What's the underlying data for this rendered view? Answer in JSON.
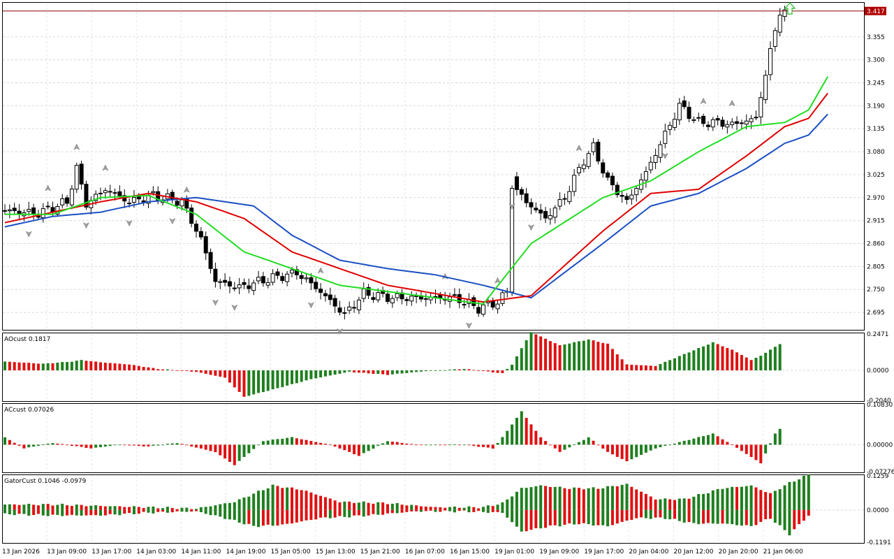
{
  "price_panel": {
    "current_price_label": "3.417",
    "price_ticks": [
      "3.355",
      "3.300",
      "3.245",
      "3.190",
      "3.135",
      "3.080",
      "3.025",
      "2.970",
      "2.915",
      "2.860",
      "2.805",
      "2.750",
      "2.695"
    ],
    "ylim": [
      2.655,
      3.435
    ],
    "bullish_arrow_icon": "up-arrow-icon",
    "colors": {
      "jaw": "#1a4fc4",
      "teeth": "#e00000",
      "lips": "#22dd22",
      "price_line": "#8b0000",
      "label_bg": "#b00000",
      "fractal": "#a0a0a0"
    }
  },
  "ao_panel": {
    "title": "AOcust 0.1817",
    "ticks": [
      "0.2471",
      "0.0000",
      "-0.2040"
    ],
    "ylim": [
      -0.204,
      0.2471
    ]
  },
  "ac_panel": {
    "title": "ACcust 0.07026",
    "ticks": [
      "0.10830",
      "0.00000",
      "-0.07276"
    ],
    "ylim": [
      -0.07276,
      0.1083
    ]
  },
  "gator_panel": {
    "title": "GatorCust 0.1046 -0.0979",
    "ticks": [
      "0.1259",
      "0.0000",
      "-0.1191"
    ],
    "ylim": [
      -0.1191,
      0.1259
    ]
  },
  "time_axis": {
    "labels": [
      "13 Jan 2026",
      "13 Jan 09:00",
      "13 Jan 17:00",
      "14 Jan 03:00",
      "14 Jan 11:00",
      "14 Jan 19:00",
      "15 Jan 05:00",
      "15 Jan 13:00",
      "15 Jan 21:00",
      "16 Jan 07:00",
      "16 Jan 15:00",
      "19 Jan 01:00",
      "19 Jan 09:00",
      "19 Jan 17:00",
      "20 Jan 04:00",
      "20 Jan 12:00",
      "20 Jan 20:00",
      "21 Jan 06:00"
    ]
  },
  "chart_data": [
    {
      "type": "candlestick",
      "title": "",
      "current_price": 3.417,
      "ylim": [
        2.655,
        3.435
      ],
      "ohlc_anchors_close": [
        [
          0,
          2.94
        ],
        [
          8,
          2.932
        ],
        [
          14,
          2.96
        ],
        [
          16,
          3.04
        ],
        [
          18,
          2.955
        ],
        [
          22,
          2.99
        ],
        [
          27,
          2.96
        ],
        [
          32,
          2.975
        ],
        [
          38,
          2.96
        ],
        [
          42,
          2.87
        ],
        [
          45,
          2.77
        ],
        [
          50,
          2.755
        ],
        [
          56,
          2.775
        ],
        [
          62,
          2.79
        ],
        [
          66,
          2.755
        ],
        [
          72,
          2.69
        ],
        [
          76,
          2.74
        ],
        [
          82,
          2.73
        ],
        [
          88,
          2.73
        ],
        [
          95,
          2.73
        ],
        [
          100,
          2.705
        ],
        [
          104,
          2.72
        ],
        [
          106,
          2.745
        ],
        [
          107,
          3.0
        ],
        [
          110,
          2.96
        ],
        [
          114,
          2.92
        ],
        [
          118,
          2.97
        ],
        [
          122,
          3.06
        ],
        [
          124,
          3.09
        ],
        [
          127,
          3.01
        ],
        [
          131,
          2.96
        ],
        [
          135,
          3.03
        ],
        [
          142,
          3.19
        ],
        [
          146,
          3.15
        ],
        [
          150,
          3.15
        ],
        [
          153,
          3.145
        ],
        [
          158,
          3.16
        ],
        [
          161,
          3.32
        ],
        [
          163,
          3.417
        ]
      ],
      "alligator": {
        "jaw": [
          [
            0,
            2.9
          ],
          [
            10,
            2.925
          ],
          [
            20,
            2.935
          ],
          [
            30,
            2.96
          ],
          [
            40,
            2.97
          ],
          [
            52,
            2.95
          ],
          [
            60,
            2.88
          ],
          [
            70,
            2.82
          ],
          [
            80,
            2.8
          ],
          [
            90,
            2.785
          ],
          [
            100,
            2.76
          ],
          [
            110,
            2.73
          ],
          [
            125,
            2.86
          ],
          [
            135,
            2.95
          ],
          [
            145,
            2.98
          ],
          [
            155,
            3.04
          ],
          [
            163,
            3.1
          ],
          [
            168,
            3.12
          ],
          [
            172,
            3.17
          ]
        ],
        "teeth": [
          [
            0,
            2.91
          ],
          [
            10,
            2.935
          ],
          [
            20,
            2.96
          ],
          [
            30,
            2.98
          ],
          [
            40,
            2.96
          ],
          [
            50,
            2.92
          ],
          [
            60,
            2.84
          ],
          [
            70,
            2.8
          ],
          [
            80,
            2.76
          ],
          [
            90,
            2.74
          ],
          [
            100,
            2.72
          ],
          [
            110,
            2.735
          ],
          [
            125,
            2.89
          ],
          [
            135,
            2.98
          ],
          [
            145,
            2.99
          ],
          [
            155,
            3.07
          ],
          [
            163,
            3.14
          ],
          [
            168,
            3.16
          ],
          [
            172,
            3.22
          ]
        ],
        "lips": [
          [
            0,
            2.93
          ],
          [
            10,
            2.93
          ],
          [
            20,
            2.97
          ],
          [
            30,
            2.975
          ],
          [
            40,
            2.93
          ],
          [
            50,
            2.84
          ],
          [
            60,
            2.8
          ],
          [
            70,
            2.76
          ],
          [
            80,
            2.745
          ],
          [
            90,
            2.73
          ],
          [
            100,
            2.715
          ],
          [
            110,
            2.86
          ],
          [
            125,
            2.97
          ],
          [
            135,
            3.01
          ],
          [
            145,
            3.08
          ],
          [
            155,
            3.14
          ],
          [
            163,
            3.15
          ],
          [
            168,
            3.18
          ],
          [
            172,
            3.26
          ]
        ]
      }
    },
    {
      "type": "bar",
      "title": "AOcust 0.1817",
      "ylim": [
        -0.204,
        0.2471
      ],
      "anchors": [
        [
          0,
          0.06
        ],
        [
          8,
          0.045
        ],
        [
          14,
          0.06
        ],
        [
          16,
          0.07
        ],
        [
          20,
          0.055
        ],
        [
          26,
          0.04
        ],
        [
          32,
          0.01
        ],
        [
          40,
          -0.01
        ],
        [
          46,
          -0.05
        ],
        [
          50,
          -0.18
        ],
        [
          56,
          -0.13
        ],
        [
          64,
          -0.06
        ],
        [
          72,
          -0.01
        ],
        [
          80,
          -0.03
        ],
        [
          88,
          -0.005
        ],
        [
          96,
          0.01
        ],
        [
          104,
          -0.02
        ],
        [
          106,
          0.04
        ],
        [
          110,
          0.26
        ],
        [
          116,
          0.17
        ],
        [
          122,
          0.21
        ],
        [
          126,
          0.18
        ],
        [
          130,
          0.04
        ],
        [
          136,
          0.03
        ],
        [
          142,
          0.11
        ],
        [
          148,
          0.19
        ],
        [
          152,
          0.14
        ],
        [
          156,
          0.07
        ],
        [
          158,
          0.1
        ],
        [
          162,
          0.18
        ]
      ]
    },
    {
      "type": "bar",
      "title": "ACcust 0.07026",
      "ylim": [
        -0.07276,
        0.1083
      ],
      "anchors": [
        [
          0,
          0.02
        ],
        [
          4,
          -0.01
        ],
        [
          10,
          0.005
        ],
        [
          18,
          -0.01
        ],
        [
          24,
          0.0
        ],
        [
          30,
          -0.005
        ],
        [
          36,
          0.005
        ],
        [
          44,
          -0.02
        ],
        [
          48,
          -0.055
        ],
        [
          54,
          0.01
        ],
        [
          60,
          0.02
        ],
        [
          68,
          0.0
        ],
        [
          74,
          -0.03
        ],
        [
          80,
          0.01
        ],
        [
          86,
          0.0
        ],
        [
          96,
          0.0
        ],
        [
          102,
          -0.01
        ],
        [
          104,
          0.02
        ],
        [
          108,
          0.09
        ],
        [
          112,
          0.02
        ],
        [
          116,
          -0.02
        ],
        [
          122,
          0.02
        ],
        [
          126,
          -0.02
        ],
        [
          130,
          -0.045
        ],
        [
          136,
          -0.01
        ],
        [
          142,
          0.01
        ],
        [
          148,
          0.03
        ],
        [
          152,
          0.0
        ],
        [
          158,
          -0.05
        ],
        [
          161,
          0.03
        ],
        [
          164,
          0.07
        ]
      ]
    },
    {
      "type": "bar",
      "title": "GatorCust 0.1046 -0.0979",
      "ylim": [
        -0.1191,
        0.1259
      ],
      "upper_anchors": [
        [
          0,
          0.02
        ],
        [
          10,
          0.02
        ],
        [
          20,
          0.015
        ],
        [
          30,
          0.01
        ],
        [
          40,
          0.005
        ],
        [
          48,
          0.03
        ],
        [
          56,
          0.09
        ],
        [
          62,
          0.075
        ],
        [
          70,
          0.03
        ],
        [
          80,
          0.025
        ],
        [
          90,
          0.01
        ],
        [
          100,
          0.01
        ],
        [
          104,
          0.025
        ],
        [
          108,
          0.08
        ],
        [
          112,
          0.09
        ],
        [
          118,
          0.08
        ],
        [
          124,
          0.08
        ],
        [
          130,
          0.095
        ],
        [
          136,
          0.04
        ],
        [
          142,
          0.04
        ],
        [
          150,
          0.08
        ],
        [
          156,
          0.09
        ],
        [
          160,
          0.06
        ],
        [
          164,
          0.1
        ],
        [
          168,
          0.13
        ]
      ],
      "lower_anchors": [
        [
          0,
          -0.015
        ],
        [
          10,
          -0.02
        ],
        [
          20,
          -0.02
        ],
        [
          30,
          -0.01
        ],
        [
          40,
          -0.005
        ],
        [
          46,
          -0.03
        ],
        [
          52,
          -0.06
        ],
        [
          58,
          -0.055
        ],
        [
          66,
          -0.03
        ],
        [
          76,
          -0.02
        ],
        [
          86,
          -0.005
        ],
        [
          96,
          -0.005
        ],
        [
          104,
          -0.01
        ],
        [
          108,
          -0.08
        ],
        [
          114,
          -0.06
        ],
        [
          120,
          -0.05
        ],
        [
          126,
          -0.06
        ],
        [
          132,
          -0.03
        ],
        [
          138,
          -0.03
        ],
        [
          144,
          -0.05
        ],
        [
          150,
          -0.05
        ],
        [
          156,
          -0.06
        ],
        [
          160,
          -0.03
        ],
        [
          164,
          -0.09
        ],
        [
          168,
          -0.02
        ]
      ]
    }
  ]
}
